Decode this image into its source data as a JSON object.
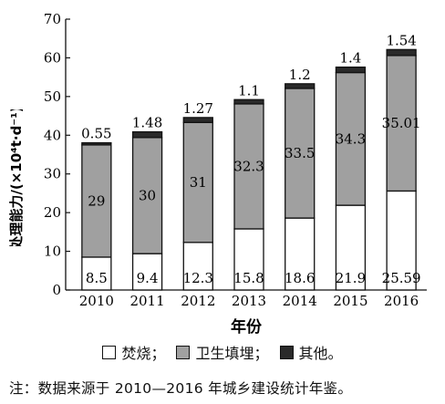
{
  "chart_data": {
    "type": "bar",
    "stacked": true,
    "categories": [
      "2010",
      "2011",
      "2012",
      "2013",
      "2014",
      "2015",
      "2016"
    ],
    "series": [
      {
        "name": "焚烧",
        "values": [
          8.5,
          9.4,
          12.3,
          15.8,
          18.6,
          21.9,
          25.59
        ],
        "color": "#ffffff"
      },
      {
        "name": "卫生填埋",
        "values": [
          29,
          30,
          31,
          32.3,
          33.5,
          34.3,
          35.01
        ],
        "color": "#a0a0a0"
      },
      {
        "name": "其他",
        "values": [
          0.55,
          1.48,
          1.27,
          1.1,
          1.2,
          1.4,
          1.54
        ],
        "color": "#2a2a2a"
      }
    ],
    "xlabel": "年份",
    "ylabel": "处理能力/(×10⁴t·d⁻¹)",
    "ylim": [
      0,
      70
    ],
    "yticks": [
      0,
      10,
      20,
      30,
      40,
      50,
      60,
      70
    ],
    "grid": false
  },
  "legend": {
    "items": [
      {
        "label": "焚烧；",
        "color": "#ffffff"
      },
      {
        "label": "卫生填埋；",
        "color": "#a0a0a0"
      },
      {
        "label": "其他。",
        "color": "#2a2a2a"
      }
    ]
  },
  "note": "注：数据来源于 2010—2016 年城乡建设统计年鉴。"
}
